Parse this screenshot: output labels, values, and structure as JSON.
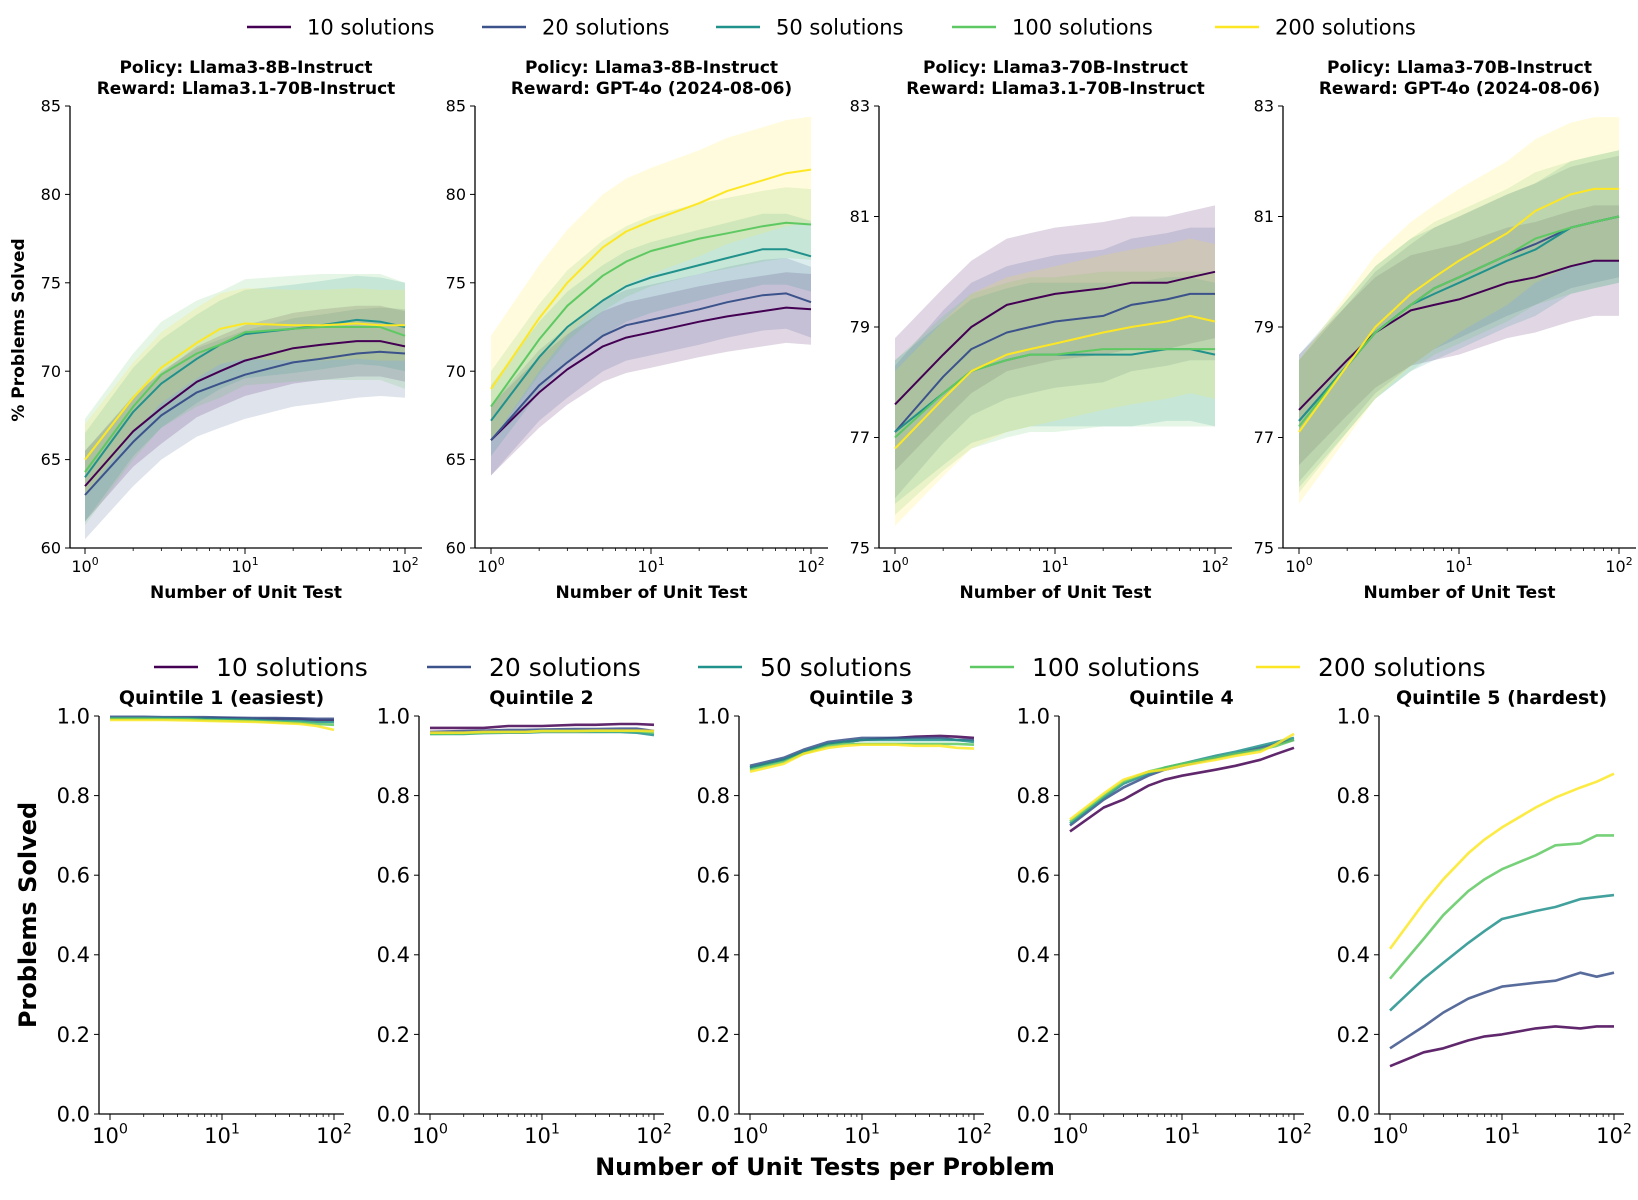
{
  "colors": {
    "10 solutions": "#440154",
    "20 solutions": "#3b528b",
    "50 solutions": "#21918c",
    "100 solutions": "#5ec962",
    "200 solutions": "#fde725"
  },
  "legend": [
    "10 solutions",
    "20 solutions",
    "50 solutions",
    "100 solutions",
    "200 solutions"
  ],
  "x_values": [
    1,
    2,
    3,
    5,
    7,
    10,
    20,
    30,
    50,
    70,
    100
  ],
  "x_tick_values": [
    1,
    10,
    100
  ],
  "x_tick_base": "10",
  "x_tick_exps": [
    "0",
    "1",
    "2"
  ],
  "top_xlabel": "Number of Unit Test",
  "top_ylabel": "% Problems Solved",
  "bottom_xlabel": "Number of Unit Tests per Problem",
  "bottom_ylabel": "Problems Solved",
  "chart_data": [
    {
      "type": "line",
      "title": [
        "Policy: Llama3-8B-Instruct",
        "Reward: Llama3.1-70B-Instruct"
      ],
      "ylim": [
        60,
        85
      ],
      "yticks": [
        60,
        65,
        70,
        75,
        80,
        85
      ],
      "band": [
        2.0,
        2.5,
        2.5,
        3.0,
        2.0
      ],
      "series": [
        {
          "name": "10 solutions",
          "values": [
            63.5,
            66.6,
            67.9,
            69.4,
            70.0,
            70.6,
            71.3,
            71.5,
            71.7,
            71.7,
            71.4
          ]
        },
        {
          "name": "20 solutions",
          "values": [
            63.0,
            66.0,
            67.5,
            68.8,
            69.3,
            69.8,
            70.5,
            70.7,
            71.0,
            71.1,
            71.0
          ]
        },
        {
          "name": "50 solutions",
          "values": [
            64.0,
            67.7,
            69.3,
            70.7,
            71.5,
            72.1,
            72.4,
            72.6,
            72.9,
            72.8,
            72.5
          ]
        },
        {
          "name": "100 solutions",
          "values": [
            64.3,
            68.0,
            69.8,
            71.0,
            71.5,
            72.2,
            72.4,
            72.5,
            72.5,
            72.5,
            72.0
          ]
        },
        {
          "name": "200 solutions",
          "values": [
            65.0,
            68.5,
            70.2,
            71.6,
            72.4,
            72.7,
            72.6,
            72.6,
            72.7,
            72.6,
            72.6
          ]
        }
      ]
    },
    {
      "type": "line",
      "title": [
        "Policy: Llama3-8B-Instruct",
        "Reward: GPT-4o (2024-08-06)"
      ],
      "ylim": [
        60,
        85
      ],
      "yticks": [
        60,
        65,
        70,
        75,
        80,
        85
      ],
      "band": [
        2.0,
        2.0,
        2.0,
        2.0,
        3.0
      ],
      "series": [
        {
          "name": "10 solutions",
          "values": [
            66.1,
            68.8,
            70.1,
            71.4,
            71.9,
            72.2,
            72.8,
            73.1,
            73.4,
            73.6,
            73.5
          ]
        },
        {
          "name": "20 solutions",
          "values": [
            66.1,
            69.2,
            70.5,
            72.0,
            72.6,
            72.9,
            73.5,
            73.9,
            74.3,
            74.4,
            73.9
          ]
        },
        {
          "name": "50 solutions",
          "values": [
            67.2,
            70.8,
            72.5,
            74.0,
            74.8,
            75.3,
            76.0,
            76.4,
            76.9,
            76.9,
            76.5
          ]
        },
        {
          "name": "100 solutions",
          "values": [
            68.0,
            71.8,
            73.7,
            75.4,
            76.2,
            76.8,
            77.5,
            77.8,
            78.2,
            78.4,
            78.3
          ]
        },
        {
          "name": "200 solutions",
          "values": [
            69.0,
            73.0,
            75.0,
            77.0,
            77.9,
            78.5,
            79.5,
            80.2,
            80.8,
            81.2,
            81.4
          ]
        }
      ]
    },
    {
      "type": "line",
      "title": [
        "Policy: Llama3-70B-Instruct",
        "Reward: Llama3.1-70B-Instruct"
      ],
      "ylim": [
        75,
        83
      ],
      "yticks": [
        75,
        77,
        79,
        81,
        83
      ],
      "band": [
        1.2,
        1.2,
        1.3,
        1.4,
        1.4
      ],
      "series": [
        {
          "name": "10 solutions",
          "values": [
            77.6,
            78.5,
            79.0,
            79.4,
            79.5,
            79.6,
            79.7,
            79.8,
            79.8,
            79.9,
            80.0
          ]
        },
        {
          "name": "20 solutions",
          "values": [
            77.1,
            78.1,
            78.6,
            78.9,
            79.0,
            79.1,
            79.2,
            79.4,
            79.5,
            79.6,
            79.6
          ]
        },
        {
          "name": "50 solutions",
          "values": [
            77.1,
            77.8,
            78.2,
            78.4,
            78.5,
            78.5,
            78.5,
            78.5,
            78.6,
            78.6,
            78.5
          ]
        },
        {
          "name": "100 solutions",
          "values": [
            77.0,
            77.8,
            78.2,
            78.4,
            78.5,
            78.5,
            78.6,
            78.6,
            78.6,
            78.6,
            78.6
          ]
        },
        {
          "name": "200 solutions",
          "values": [
            76.8,
            77.7,
            78.2,
            78.5,
            78.6,
            78.7,
            78.9,
            79.0,
            79.1,
            79.2,
            79.1
          ]
        }
      ]
    },
    {
      "type": "line",
      "title": [
        "Policy: Llama3-70B-Instruct",
        "Reward: GPT-4o (2024-08-06)"
      ],
      "ylim": [
        75,
        83
      ],
      "yticks": [
        75,
        77,
        79,
        81,
        83
      ],
      "band": [
        1.0,
        1.1,
        1.2,
        1.2,
        1.3
      ],
      "series": [
        {
          "name": "10 solutions",
          "values": [
            77.5,
            78.4,
            78.9,
            79.3,
            79.4,
            79.5,
            79.8,
            79.9,
            80.1,
            80.2,
            80.2
          ]
        },
        {
          "name": "20 solutions",
          "values": [
            77.3,
            78.3,
            78.9,
            79.4,
            79.7,
            79.9,
            80.3,
            80.5,
            80.8,
            80.9,
            81.0
          ]
        },
        {
          "name": "50 solutions",
          "values": [
            77.3,
            78.3,
            78.9,
            79.4,
            79.6,
            79.8,
            80.2,
            80.4,
            80.8,
            80.9,
            81.0
          ]
        },
        {
          "name": "100 solutions",
          "values": [
            77.2,
            78.3,
            78.9,
            79.4,
            79.7,
            79.9,
            80.3,
            80.6,
            80.8,
            80.9,
            81.0
          ]
        },
        {
          "name": "200 solutions",
          "values": [
            77.1,
            78.3,
            79.0,
            79.6,
            79.9,
            80.2,
            80.7,
            81.1,
            81.4,
            81.5,
            81.5
          ]
        }
      ]
    },
    {
      "type": "line",
      "title": [
        "Quintile 1 (easiest)"
      ],
      "ylim": [
        0,
        1
      ],
      "yticks": [
        0.0,
        0.2,
        0.4,
        0.6,
        0.8,
        1.0
      ],
      "series": [
        {
          "name": "10 solutions",
          "values": [
            0.995,
            0.995,
            0.995,
            0.995,
            0.995,
            0.995,
            0.993,
            0.993,
            0.992,
            0.99,
            0.99
          ]
        },
        {
          "name": "20 solutions",
          "values": [
            0.998,
            0.998,
            0.997,
            0.997,
            0.997,
            0.996,
            0.995,
            0.995,
            0.994,
            0.993,
            0.993
          ]
        },
        {
          "name": "50 solutions",
          "values": [
            0.995,
            0.995,
            0.995,
            0.994,
            0.993,
            0.992,
            0.99,
            0.988,
            0.987,
            0.985,
            0.985
          ]
        },
        {
          "name": "100 solutions",
          "values": [
            0.993,
            0.993,
            0.992,
            0.992,
            0.99,
            0.989,
            0.987,
            0.985,
            0.983,
            0.98,
            0.978
          ]
        },
        {
          "name": "200 solutions",
          "values": [
            0.99,
            0.99,
            0.99,
            0.989,
            0.988,
            0.987,
            0.985,
            0.983,
            0.98,
            0.975,
            0.965
          ]
        }
      ]
    },
    {
      "type": "line",
      "title": [
        "Quintile 2"
      ],
      "ylim": [
        0,
        1
      ],
      "yticks": [
        0.0,
        0.2,
        0.4,
        0.6,
        0.8,
        1.0
      ],
      "series": [
        {
          "name": "10 solutions",
          "values": [
            0.97,
            0.97,
            0.97,
            0.975,
            0.975,
            0.975,
            0.978,
            0.978,
            0.98,
            0.98,
            0.978
          ]
        },
        {
          "name": "20 solutions",
          "values": [
            0.96,
            0.962,
            0.963,
            0.965,
            0.965,
            0.966,
            0.967,
            0.967,
            0.968,
            0.968,
            0.962
          ]
        },
        {
          "name": "50 solutions",
          "values": [
            0.955,
            0.955,
            0.957,
            0.958,
            0.958,
            0.96,
            0.96,
            0.96,
            0.96,
            0.958,
            0.952
          ]
        },
        {
          "name": "100 solutions",
          "values": [
            0.955,
            0.956,
            0.958,
            0.96,
            0.96,
            0.962,
            0.962,
            0.962,
            0.962,
            0.962,
            0.958
          ]
        },
        {
          "name": "200 solutions",
          "values": [
            0.958,
            0.958,
            0.96,
            0.96,
            0.96,
            0.962,
            0.962,
            0.963,
            0.963,
            0.963,
            0.962
          ]
        }
      ]
    },
    {
      "type": "line",
      "title": [
        "Quintile 3"
      ],
      "ylim": [
        0,
        1
      ],
      "yticks": [
        0.0,
        0.2,
        0.4,
        0.6,
        0.8,
        1.0
      ],
      "series": [
        {
          "name": "10 solutions",
          "values": [
            0.87,
            0.89,
            0.91,
            0.93,
            0.935,
            0.94,
            0.945,
            0.948,
            0.95,
            0.948,
            0.945
          ]
        },
        {
          "name": "20 solutions",
          "values": [
            0.875,
            0.895,
            0.915,
            0.935,
            0.94,
            0.945,
            0.945,
            0.945,
            0.945,
            0.94,
            0.94
          ]
        },
        {
          "name": "50 solutions",
          "values": [
            0.87,
            0.89,
            0.91,
            0.93,
            0.935,
            0.94,
            0.94,
            0.94,
            0.94,
            0.94,
            0.935
          ]
        },
        {
          "name": "100 solutions",
          "values": [
            0.865,
            0.885,
            0.905,
            0.925,
            0.93,
            0.93,
            0.93,
            0.93,
            0.93,
            0.93,
            0.928
          ]
        },
        {
          "name": "200 solutions",
          "values": [
            0.86,
            0.88,
            0.905,
            0.92,
            0.925,
            0.928,
            0.928,
            0.925,
            0.925,
            0.92,
            0.918
          ]
        }
      ]
    },
    {
      "type": "line",
      "title": [
        "Quintile 4"
      ],
      "ylim": [
        0,
        1
      ],
      "yticks": [
        0.0,
        0.2,
        0.4,
        0.6,
        0.8,
        1.0
      ],
      "series": [
        {
          "name": "10 solutions",
          "values": [
            0.71,
            0.77,
            0.79,
            0.825,
            0.84,
            0.85,
            0.865,
            0.875,
            0.89,
            0.905,
            0.92
          ]
        },
        {
          "name": "20 solutions",
          "values": [
            0.725,
            0.79,
            0.82,
            0.85,
            0.865,
            0.875,
            0.895,
            0.905,
            0.92,
            0.93,
            0.94
          ]
        },
        {
          "name": "50 solutions",
          "values": [
            0.73,
            0.795,
            0.83,
            0.855,
            0.87,
            0.88,
            0.9,
            0.91,
            0.925,
            0.935,
            0.945
          ]
        },
        {
          "name": "100 solutions",
          "values": [
            0.735,
            0.8,
            0.835,
            0.86,
            0.87,
            0.88,
            0.895,
            0.905,
            0.915,
            0.925,
            0.94
          ]
        },
        {
          "name": "200 solutions",
          "values": [
            0.74,
            0.805,
            0.84,
            0.86,
            0.865,
            0.875,
            0.89,
            0.9,
            0.91,
            0.93,
            0.955
          ]
        }
      ]
    },
    {
      "type": "line",
      "title": [
        "Quintile 5 (hardest)"
      ],
      "ylim": [
        0,
        1
      ],
      "yticks": [
        0.0,
        0.2,
        0.4,
        0.6,
        0.8,
        1.0
      ],
      "series": [
        {
          "name": "10 solutions",
          "values": [
            0.12,
            0.155,
            0.165,
            0.185,
            0.195,
            0.2,
            0.215,
            0.22,
            0.215,
            0.22,
            0.22
          ]
        },
        {
          "name": "20 solutions",
          "values": [
            0.165,
            0.22,
            0.255,
            0.29,
            0.305,
            0.32,
            0.33,
            0.335,
            0.355,
            0.345,
            0.355
          ]
        },
        {
          "name": "50 solutions",
          "values": [
            0.26,
            0.34,
            0.38,
            0.43,
            0.46,
            0.49,
            0.51,
            0.52,
            0.54,
            0.545,
            0.55
          ]
        },
        {
          "name": "100 solutions",
          "values": [
            0.34,
            0.44,
            0.5,
            0.56,
            0.59,
            0.615,
            0.65,
            0.675,
            0.68,
            0.7,
            0.7
          ]
        },
        {
          "name": "200 solutions",
          "values": [
            0.415,
            0.53,
            0.59,
            0.655,
            0.69,
            0.72,
            0.77,
            0.795,
            0.82,
            0.835,
            0.855
          ]
        }
      ]
    }
  ]
}
